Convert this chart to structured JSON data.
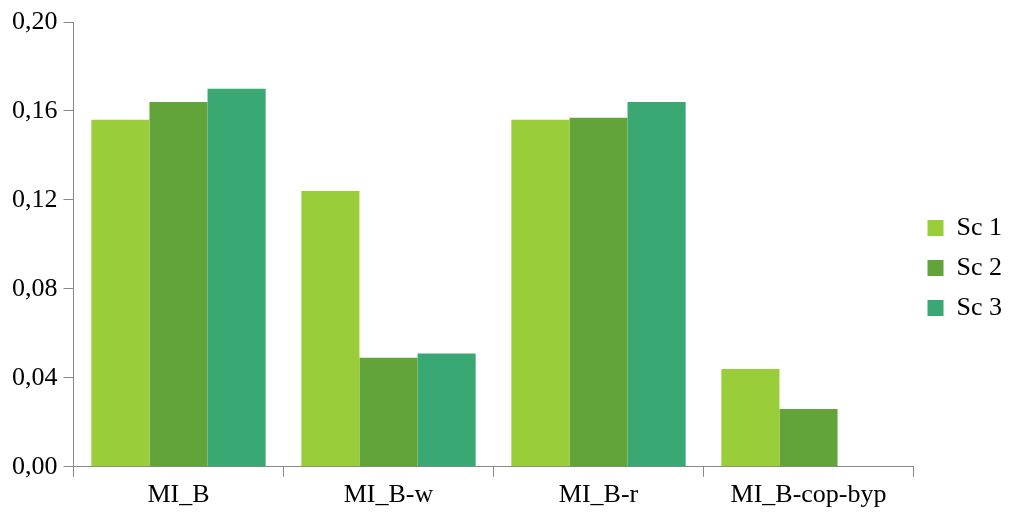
{
  "chart_data": {
    "type": "bar",
    "categories": [
      "MI_B",
      "MI_B-w",
      "MI_B-r",
      "MI_B-cop-byp"
    ],
    "series": [
      {
        "name": "Sc 1",
        "color": "#9acd3a",
        "values": [
          0.156,
          0.124,
          0.156,
          0.044
        ]
      },
      {
        "name": "Sc 2",
        "color": "#63a43a",
        "values": [
          0.164,
          0.049,
          0.157,
          0.026
        ]
      },
      {
        "name": "Sc 3",
        "color": "#3aa872",
        "values": [
          0.17,
          0.051,
          0.164,
          null
        ]
      }
    ],
    "ylim": [
      0,
      0.2
    ],
    "yticks": [
      {
        "value": 0,
        "label": "0,00"
      },
      {
        "value": 0.04,
        "label": "0,04"
      },
      {
        "value": 0.08,
        "label": "0,08"
      },
      {
        "value": 0.12,
        "label": "0,12"
      },
      {
        "value": 0.16,
        "label": "0,16"
      },
      {
        "value": 0.2,
        "label": "0,20"
      }
    ],
    "grid": false,
    "legend": "right"
  }
}
